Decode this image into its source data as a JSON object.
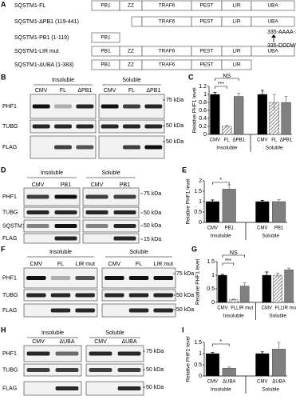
{
  "panel_a": {
    "label": "A",
    "constructs": [
      {
        "name": "SQSTM1-FL",
        "domains": [
          "PB1",
          "ZZ",
          "TRAF6",
          "PEST",
          "LIR",
          "UBA"
        ]
      },
      {
        "name": "SQSTM1-ΔPB1 (119-441)",
        "domains": [
          "TRAF6",
          "PEST",
          "LIR",
          "UBA"
        ]
      },
      {
        "name": "SQSTM1-PB1 (1-119)",
        "domains": [
          "PB1"
        ]
      },
      {
        "name": "SQSTM1-LIR mut",
        "domains": [
          "PB1",
          "ZZ",
          "TRAF6",
          "PEST",
          "LIR",
          "UBA"
        ]
      },
      {
        "name": "SQSTM1-ΔUBA (1-383)",
        "domains": [
          "PB1",
          "ZZ",
          "TRAF6",
          "PEST",
          "LIR"
        ]
      }
    ],
    "mutations": [
      "335-AAAA-338",
      "335-DDDW-338"
    ]
  },
  "blots": [
    {
      "label": "B",
      "groups": [
        "Insoluble",
        "Soluble"
      ],
      "lanes": [
        "CMV",
        "FL",
        "ΔPB1"
      ],
      "rows": [
        "PHF1",
        "TUBG",
        "FLAG"
      ],
      "markers": [
        "75 kDa",
        "50 kDa",
        "50 kDa"
      ]
    },
    {
      "label": "D",
      "groups": [
        "Insoluble",
        "Soluble"
      ],
      "lanes": [
        "CMV",
        "PB1"
      ],
      "rows": [
        "PHF1",
        "TUBG",
        "SQSTM1",
        "FLAG"
      ],
      "markers": [
        "75 kDa",
        "50 kDa",
        "50 kDa",
        "15 kDa"
      ]
    },
    {
      "label": "F",
      "groups": [
        "Insoluble",
        "Soluble"
      ],
      "lanes": [
        "CMV",
        "FL",
        "LIR mut"
      ],
      "rows": [
        "PHF1",
        "TUBG",
        "FLAG"
      ],
      "markers": [
        "75 kDa",
        "50 kDa",
        "50 kDa"
      ]
    },
    {
      "label": "H",
      "groups": [
        "Insoluble",
        "Soluble"
      ],
      "lanes": [
        "CMV",
        "ΔUBA"
      ],
      "rows": [
        "PHF1",
        "TUBG",
        "FLAG"
      ],
      "markers": [
        "75 kDa",
        "50 kDa",
        "50 kDa"
      ]
    }
  ],
  "chart_data": [
    {
      "type": "bar",
      "label": "C",
      "ylabel": "Relative PHF1 level",
      "groups": [
        "Insoluble",
        "Soluble"
      ],
      "categories": [
        "CMV",
        "FL",
        "ΔPB1",
        "CMV",
        "FL",
        "ΔPB1"
      ],
      "values": [
        1,
        0.2,
        0.95,
        1,
        0.8,
        0.8
      ],
      "errors": [
        0.05,
        0.03,
        0.08,
        0.1,
        0.2,
        0.15
      ],
      "fills": [
        "#000000",
        "hatch",
        "#808080",
        "#000000",
        "hatch",
        "#808080"
      ],
      "ylim": [
        0,
        1.2
      ],
      "yticks": [
        0,
        0.2,
        0.4,
        0.6,
        0.8,
        1,
        1.2
      ],
      "annotations": [
        "***",
        "NS"
      ]
    },
    {
      "type": "bar",
      "label": "E",
      "ylabel": "Relative PHF1 level",
      "groups": [
        "Insoluble",
        "Soluble"
      ],
      "categories": [
        "CMV",
        "PB1",
        "CMV",
        "PB1"
      ],
      "values": [
        1,
        1.6,
        1,
        1
      ],
      "errors": [
        0.08,
        0.2,
        0.06,
        0.1
      ],
      "fills": [
        "#000000",
        "#808080",
        "#000000",
        "#808080"
      ],
      "ylim": [
        0,
        2
      ],
      "yticks": [
        0,
        0.5,
        1,
        1.5,
        2
      ],
      "annotations": [
        "*"
      ]
    },
    {
      "type": "bar",
      "label": "G",
      "ylabel": "Relative PHF1 level",
      "groups": [
        "Insoluble",
        "Soluble"
      ],
      "categories": [
        "CMV",
        "FL",
        "LIR mut",
        "CMV",
        "FL",
        "LIR mut"
      ],
      "values": [
        1,
        0.1,
        0.6,
        1,
        1,
        1.2
      ],
      "errors": [
        0.03,
        0.02,
        0.12,
        0.12,
        0.08,
        0.06
      ],
      "fills": [
        "#000000",
        "hatch",
        "#808080",
        "#000000",
        "hatch",
        "#808080"
      ],
      "ylim": [
        0,
        1.5
      ],
      "yticks": [
        0,
        0.5,
        1,
        1.5
      ],
      "annotations": [
        "***",
        "NS"
      ]
    },
    {
      "type": "bar",
      "label": "I",
      "ylabel": "Relative PHF1 level",
      "groups": [
        "Insoluble",
        "Soluble"
      ],
      "categories": [
        "CMV",
        "ΔUBA",
        "CMV",
        "ΔUBA"
      ],
      "values": [
        1,
        0.35,
        1,
        1.2
      ],
      "errors": [
        0.05,
        0.05,
        0.08,
        0.3
      ],
      "fills": [
        "#000000",
        "#808080",
        "#000000",
        "#808080"
      ],
      "ylim": [
        0,
        1.5
      ],
      "yticks": [
        0,
        0.5,
        1,
        1.5
      ],
      "annotations": [
        "*"
      ]
    }
  ]
}
